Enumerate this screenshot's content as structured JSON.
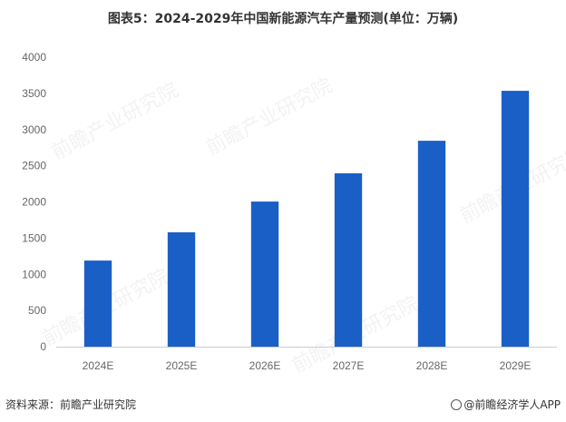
{
  "chart_title": "图表5：2024-2029年中国新能源汽车产量预测(单位：万辆)",
  "source_text": "资料来源：前瞻产业研究院",
  "brand_text": "@前瞻经济学人APP",
  "watermark_text": "前瞻产业研究院",
  "colors": {
    "bar": "#1a5fc6"
  },
  "chart_data": {
    "type": "bar",
    "title": "图表5：2024-2029年中国新能源汽车产量预测(单位：万辆)",
    "xlabel": "",
    "ylabel": "",
    "categories": [
      "2024E",
      "2025E",
      "2026E",
      "2027E",
      "2028E",
      "2029E"
    ],
    "values": [
      1190,
      1580,
      2005,
      2395,
      2845,
      3535
    ],
    "ylim": [
      0,
      4000
    ],
    "yticks": [
      0,
      500,
      1000,
      1500,
      2000,
      2500,
      3000,
      3500,
      4000
    ],
    "grid": false,
    "legend": "none"
  }
}
